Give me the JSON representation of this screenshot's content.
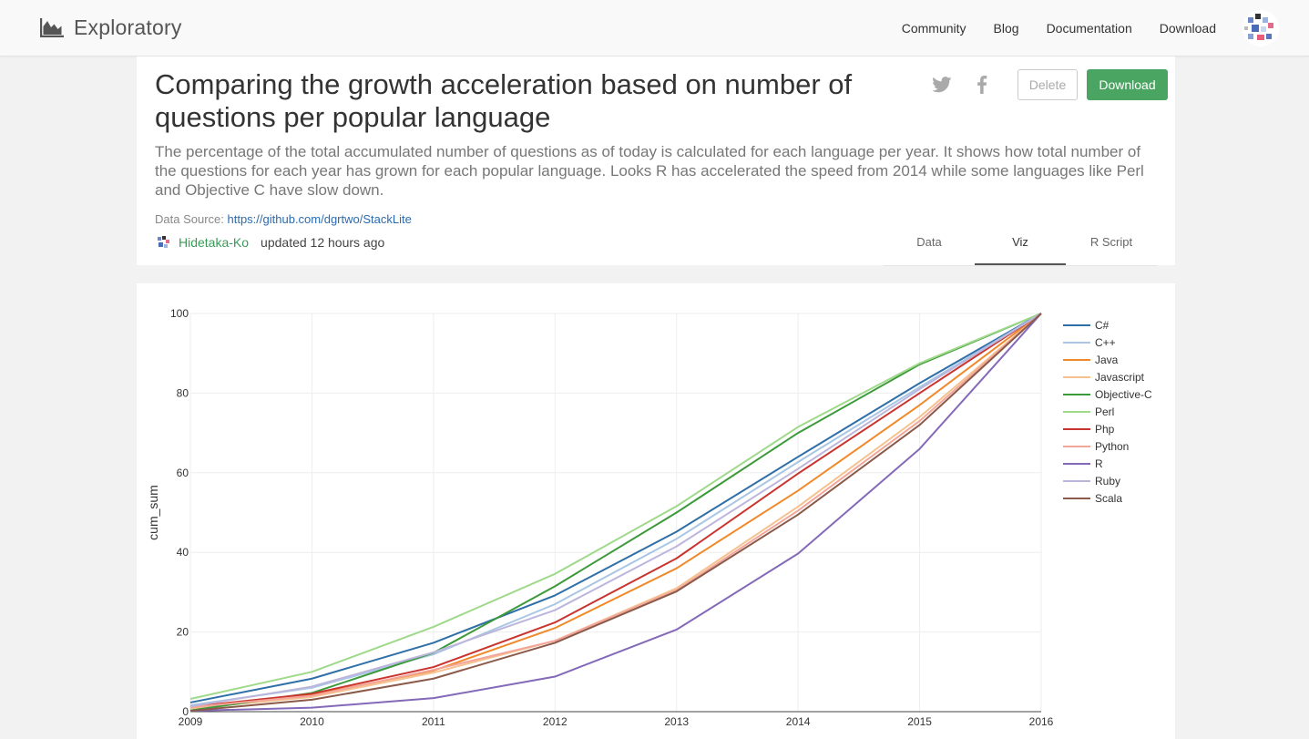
{
  "nav": {
    "brand": "Exploratory",
    "links": [
      "Community",
      "Blog",
      "Documentation",
      "Download"
    ]
  },
  "header": {
    "title": "Comparing the growth acceleration based on number of questions per popular language",
    "description": "The percentage of the total accumulated number of questions as of today is calculated for each language per year. It shows how total number of the questions for each year has grown for each popular language. Looks R has accelerated the speed from 2014 while some languages like Perl and Objective C have slow down.",
    "source_label": "Data Source:",
    "source_url": "https://github.com/dgrtwo/StackLite",
    "author": "Hidetaka-Ko",
    "updated": "updated 12 hours ago",
    "delete_label": "Delete",
    "download_label": "Download",
    "tabs": [
      "Data",
      "Viz",
      "R Script"
    ],
    "active_tab": "Viz"
  },
  "colors": {
    "accent_green": "#4ba562",
    "author_green": "#3b9a57",
    "link_blue": "#2a6bb0"
  },
  "chart_data": {
    "type": "line",
    "title": "",
    "xlabel": "",
    "ylabel": "cum_sum",
    "x": [
      2009,
      2010,
      2011,
      2012,
      2013,
      2014,
      2015,
      2016
    ],
    "xlim": [
      2009,
      2016
    ],
    "ylim": [
      0,
      100
    ],
    "yticks": [
      0,
      20,
      40,
      60,
      80,
      100
    ],
    "grid": true,
    "legend_position": "right",
    "series": [
      {
        "name": "C#",
        "color": "#2f6fa8",
        "values": [
          2.3,
          8.3,
          17.3,
          29.2,
          45.2,
          64.0,
          82.5,
          100
        ]
      },
      {
        "name": "C++",
        "color": "#a9c6e4",
        "values": [
          1.6,
          6.0,
          14.4,
          27.0,
          43.4,
          62.7,
          81.5,
          100
        ]
      },
      {
        "name": "Java",
        "color": "#f0892a",
        "values": [
          1.0,
          4.2,
          10.3,
          21.0,
          36.0,
          55.5,
          77.0,
          100
        ]
      },
      {
        "name": "Javascript",
        "color": "#f5c28f",
        "values": [
          0.8,
          3.7,
          9.8,
          17.8,
          31.0,
          51.5,
          74.0,
          100
        ]
      },
      {
        "name": "Objective-C",
        "color": "#3c9a3a",
        "values": [
          0.3,
          4.7,
          14.8,
          31.5,
          50.0,
          70.0,
          87.2,
          100
        ]
      },
      {
        "name": "Perl",
        "color": "#9fd98a",
        "values": [
          3.2,
          10.0,
          21.3,
          34.6,
          51.6,
          71.5,
          87.5,
          100
        ]
      },
      {
        "name": "Php",
        "color": "#c9342f",
        "values": [
          1.2,
          4.5,
          11.2,
          22.4,
          38.5,
          59.8,
          80.0,
          100
        ]
      },
      {
        "name": "Python",
        "color": "#f4a59a",
        "values": [
          1.1,
          4.0,
          10.5,
          17.8,
          30.5,
          50.5,
          73.0,
          100
        ]
      },
      {
        "name": "R",
        "color": "#8469b8",
        "values": [
          0.2,
          1.0,
          3.4,
          8.8,
          20.6,
          39.7,
          66.0,
          100
        ]
      },
      {
        "name": "Ruby",
        "color": "#bcb6dc",
        "values": [
          1.3,
          6.3,
          14.9,
          25.5,
          41.5,
          61.0,
          81.0,
          100
        ]
      },
      {
        "name": "Scala",
        "color": "#8b5a4a",
        "values": [
          0.2,
          3.0,
          8.3,
          17.3,
          30.2,
          49.5,
          72.0,
          100
        ]
      }
    ]
  }
}
